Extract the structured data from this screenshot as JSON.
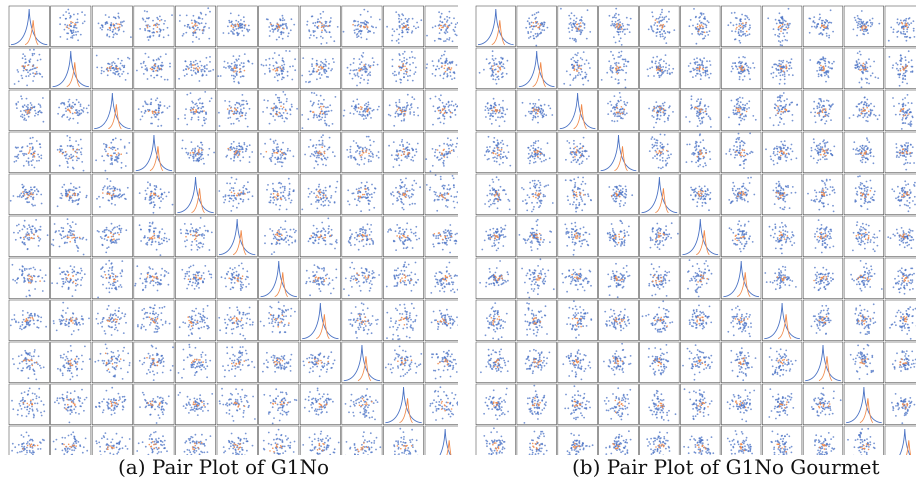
{
  "figure": {
    "panels": [
      {
        "caption": "(a) Pair Plot of G1No"
      },
      {
        "caption": "(b) Pair Plot of G1No Gourmet"
      }
    ]
  },
  "colors": {
    "majority_class": "#4a72c4",
    "minority_class": "#f08a4b",
    "background": "#ffffff",
    "cell_border": "#555555"
  },
  "chart_data": [
    {
      "type": "scatter",
      "subtype": "pair-plot-matrix",
      "title": "(a) Pair Plot of G1No",
      "grid_rows": 11,
      "grid_cols": 11,
      "diagonal": "kde",
      "off_diagonal": "scatter",
      "series": [
        {
          "color": "#4a72c4"
        },
        {
          "color": "#f08a4b"
        }
      ],
      "xlabel": "",
      "ylabel": ""
    },
    {
      "type": "scatter",
      "subtype": "pair-plot-matrix",
      "title": "(b) Pair Plot of G1No Gourmet",
      "grid_rows": 11,
      "grid_cols": 11,
      "diagonal": "kde",
      "off_diagonal": "scatter",
      "series": [
        {
          "color": "#4a72c4"
        },
        {
          "color": "#f08a4b"
        }
      ],
      "xlabel": "",
      "ylabel": ""
    }
  ]
}
